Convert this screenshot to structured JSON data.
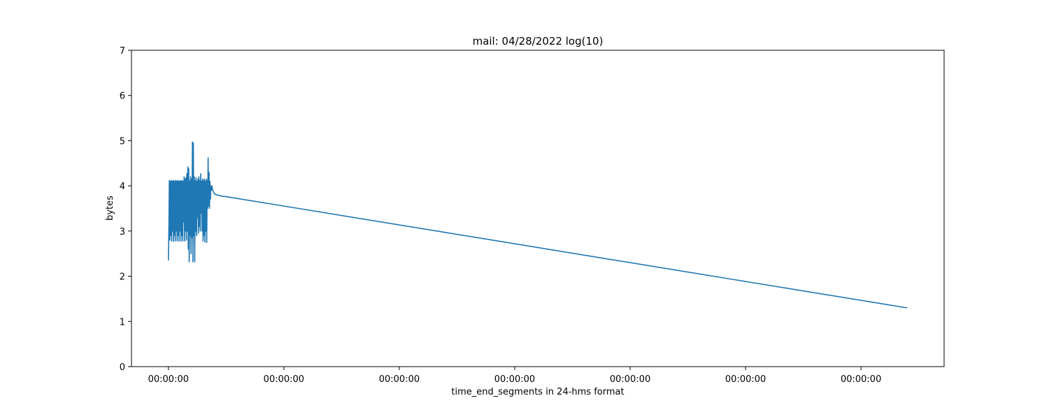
{
  "chart_data": {
    "type": "line",
    "title": "mail: 04/28/2022 log(10)",
    "xlabel": "time_end_segments in 24-hms format",
    "ylabel": "bytes",
    "x_tick_labels": [
      "00:00:00",
      "00:00:00",
      "00:00:00",
      "00:00:00",
      "00:00:00",
      "00:00:00",
      "00:00:00"
    ],
    "x_tick_values": [
      0,
      1,
      2,
      3,
      4,
      5,
      6
    ],
    "xlim": [
      -0.32,
      6.72
    ],
    "y_ticks": [
      0,
      1,
      2,
      3,
      4,
      5,
      6,
      7
    ],
    "ylim": [
      0,
      7
    ],
    "grid": false,
    "series": [
      {
        "color": "#1f77b4",
        "x": [
          0.0,
          0.004,
          0.008,
          0.012,
          0.016,
          0.02,
          0.024,
          0.028,
          0.032,
          0.036,
          0.04,
          0.044,
          0.048,
          0.052,
          0.056,
          0.06,
          0.064,
          0.068,
          0.072,
          0.076,
          0.08,
          0.084,
          0.088,
          0.092,
          0.096,
          0.1,
          0.104,
          0.108,
          0.112,
          0.116,
          0.12,
          0.124,
          0.128,
          0.132,
          0.136,
          0.14,
          0.144,
          0.148,
          0.152,
          0.156,
          0.16,
          0.164,
          0.168,
          0.172,
          0.176,
          0.18,
          0.184,
          0.188,
          0.192,
          0.196,
          0.2,
          0.204,
          0.208,
          0.212,
          0.216,
          0.22,
          0.224,
          0.228,
          0.232,
          0.236,
          0.24,
          0.244,
          0.248,
          0.252,
          0.256,
          0.26,
          0.264,
          0.268,
          0.272,
          0.276,
          0.28,
          0.284,
          0.288,
          0.292,
          0.296,
          0.3,
          0.304,
          0.308,
          0.312,
          0.316,
          0.32,
          0.324,
          0.328,
          0.332,
          0.336,
          0.34,
          0.344,
          0.348,
          0.352,
          0.356,
          0.36,
          0.364,
          0.368,
          0.372,
          0.376,
          0.38,
          0.384,
          0.388,
          0.392,
          0.396,
          0.4,
          0.404,
          0.408,
          0.412,
          0.416,
          0.42,
          0.424,
          0.428,
          0.432,
          0.436,
          0.44,
          0.444,
          0.448,
          0.452,
          0.456,
          0.46,
          0.464,
          0.468,
          0.472,
          0.476,
          0.48,
          6.4
        ],
        "y": [
          2.35,
          3.0,
          4.12,
          2.8,
          4.1,
          2.9,
          4.12,
          2.78,
          4.1,
          3.0,
          4.11,
          2.77,
          4.12,
          2.9,
          4.1,
          2.78,
          4.12,
          3.0,
          4.1,
          2.78,
          4.12,
          2.9,
          4.11,
          2.78,
          4.1,
          3.0,
          4.12,
          2.78,
          4.1,
          2.9,
          4.12,
          2.78,
          4.1,
          3.2,
          4.2,
          2.78,
          4.15,
          3.0,
          4.18,
          2.8,
          4.27,
          3.0,
          4.42,
          2.6,
          4.38,
          2.32,
          4.1,
          2.9,
          4.2,
          2.5,
          4.15,
          2.85,
          4.97,
          2.32,
          4.95,
          2.9,
          4.2,
          2.32,
          4.12,
          3.0,
          4.18,
          2.9,
          4.1,
          3.3,
          4.15,
          2.95,
          4.2,
          3.1,
          4.12,
          3.0,
          4.27,
          3.4,
          4.1,
          3.0,
          4.15,
          2.78,
          4.12,
          2.9,
          4.15,
          2.76,
          4.1,
          3.0,
          4.15,
          2.75,
          4.12,
          3.5,
          4.62,
          3.55,
          4.3,
          3.5,
          4.1,
          3.7,
          4.0,
          3.9,
          4.0,
          3.95,
          3.9,
          3.88,
          3.85,
          3.83,
          3.82,
          3.82,
          3.81,
          3.81,
          3.8,
          3.8,
          3.8,
          3.79,
          3.79,
          3.79,
          3.79,
          3.78,
          3.78,
          3.78,
          3.78,
          3.77,
          3.77,
          3.77,
          3.77,
          3.77,
          3.77,
          1.3
        ]
      }
    ]
  }
}
